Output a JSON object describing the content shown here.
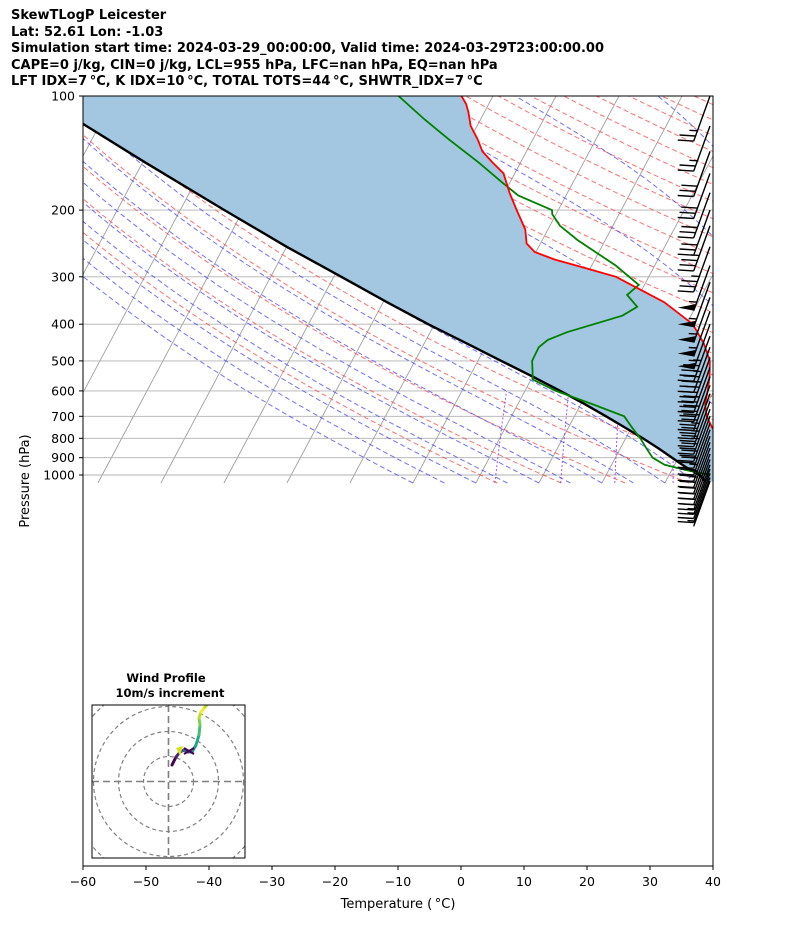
{
  "header": {
    "line1": "SkewTLogP Leicester",
    "line2": "Lat: 52.61   Lon: -1.03",
    "line3": "Simulation start time: 2024-03-29_00:00:00, Valid time: 2024-03-29T23:00:00.00",
    "line4": "CAPE=0 j/kg, CIN=0 j/kg, LCL=955 hPa, LFC=nan hPa, EQ=nan hPa",
    "line5": "LFT IDX=7 °C, K IDX=10 °C, TOTAL TOTS=44 °C, SHWTR_IDX=7 °C"
  },
  "colors": {
    "temperature": "#ff0000",
    "dewpoint": "#008000",
    "parcel": "#000000",
    "cape_fill": "#a3c7e0",
    "dry_adiabat": "#ff4040",
    "moist_adiabat": "#4040ff",
    "mixing_ratio": "#8a2be2",
    "isotherm": "#a0a0a0"
  },
  "chart_data": [
    {
      "type": "line",
      "subtype": "skew-T log-P",
      "xlabel": "Temperature ( °C)",
      "ylabel": "Pressure (hPa)",
      "xlim": [
        -60,
        40
      ],
      "ylim": [
        1050,
        100
      ],
      "y_scale": "log",
      "x_ticks": [
        "−60",
        "−50",
        "−40",
        "−30",
        "−20",
        "−10",
        "0",
        "10",
        "20",
        "30",
        "40"
      ],
      "x_tick_values": [
        -60,
        -50,
        -40,
        -30,
        -20,
        -10,
        0,
        10,
        20,
        30,
        40
      ],
      "y_ticks": [
        "100",
        "200",
        "300",
        "400",
        "500",
        "600",
        "700",
        "800",
        "900",
        "1000"
      ],
      "y_tick_values": [
        100,
        200,
        300,
        400,
        500,
        600,
        700,
        800,
        900,
        1000
      ],
      "grid": true,
      "series": [
        {
          "key": "temperature",
          "points": [
            [
              1040,
              7.5
            ],
            [
              1020,
              8.8
            ],
            [
              1000,
              9.6
            ],
            [
              970,
              9.5
            ],
            [
              940,
              9.0
            ],
            [
              900,
              8.3
            ],
            [
              850,
              7.1
            ],
            [
              800,
              5.0
            ],
            [
              750,
              2.8
            ],
            [
              700,
              1.0
            ],
            [
              650,
              -0.3
            ],
            [
              600,
              -1.0
            ],
            [
              550,
              -1.9
            ],
            [
              500,
              -3.2
            ],
            [
              450,
              -5.6
            ],
            [
              400,
              -9.0
            ],
            [
              350,
              -15.4
            ],
            [
              300,
              -25.2
            ],
            [
              285,
              -30.6
            ],
            [
              270,
              -36.4
            ],
            [
              258,
              -40.2
            ],
            [
              245,
              -42.2
            ],
            [
              225,
              -43.6
            ],
            [
              200,
              -46.6
            ],
            [
              180,
              -49.2
            ],
            [
              160,
              -51.8
            ],
            [
              150,
              -54.4
            ],
            [
              140,
              -57.0
            ],
            [
              130,
              -58.8
            ],
            [
              120,
              -61.0
            ],
            [
              110,
              -62.6
            ],
            [
              105,
              -63.6
            ],
            [
              100,
              -65.0
            ]
          ]
        },
        {
          "key": "dewpoint",
          "points": [
            [
              1000,
              6.5
            ],
            [
              970,
              2.2
            ],
            [
              940,
              -1.6
            ],
            [
              900,
              -4.1
            ],
            [
              850,
              -5.9
            ],
            [
              800,
              -7.7
            ],
            [
              750,
              -9.9
            ],
            [
              700,
              -12.1
            ],
            [
              650,
              -18.2
            ],
            [
              600,
              -25.1
            ],
            [
              560,
              -29.7
            ],
            [
              500,
              -31.4
            ],
            [
              460,
              -31.5
            ],
            [
              440,
              -30.7
            ],
            [
              420,
              -28.3
            ],
            [
              380,
              -20.9
            ],
            [
              360,
              -19.3
            ],
            [
              335,
              -21.9
            ],
            [
              315,
              -20.9
            ],
            [
              280,
              -26.2
            ],
            [
              240,
              -34.4
            ],
            [
              220,
              -38.4
            ],
            [
              205,
              -40.6
            ],
            [
              200,
              -41.0
            ],
            [
              183,
              -47.6
            ],
            [
              170,
              -51.0
            ],
            [
              150,
              -56.6
            ],
            [
              130,
              -63.4
            ],
            [
              115,
              -69.0
            ],
            [
              100,
              -75.0
            ]
          ]
        },
        {
          "key": "parcel",
          "points": [
            [
              1040,
              6.3
            ],
            [
              1000,
              4.8
            ],
            [
              950,
              1.8
            ],
            [
              900,
              -1.0
            ],
            [
              850,
              -4.0
            ],
            [
              800,
              -7.3
            ],
            [
              750,
              -11.0
            ],
            [
              700,
              -15.0
            ],
            [
              650,
              -19.4
            ],
            [
              600,
              -24.4
            ],
            [
              550,
              -30.0
            ],
            [
              500,
              -36.3
            ],
            [
              450,
              -43.2
            ],
            [
              400,
              -51.0
            ],
            [
              350,
              -59.4
            ],
            [
              300,
              -68.8
            ],
            [
              250,
              -80.0
            ],
            [
              200,
              -93.0
            ],
            [
              150,
              -109.5
            ],
            [
              120,
              -122.0
            ],
            [
              100,
              -132.0
            ]
          ]
        }
      ],
      "wind_barbs": {
        "pressures": [
          1038,
          1015,
          990,
          965,
          940,
          910,
          880,
          850,
          820,
          790,
          760,
          730,
          700,
          670,
          640,
          610,
          580,
          550,
          520,
          490,
          460,
          430,
          400,
          370,
          340,
          310,
          280,
          250,
          220,
          200,
          180,
          160,
          140,
          120,
          100
        ],
        "speeds_kt": [
          5,
          10,
          15,
          15,
          20,
          20,
          20,
          20,
          25,
          25,
          25,
          30,
          30,
          35,
          35,
          35,
          40,
          40,
          40,
          45,
          45,
          45,
          55,
          55,
          55,
          55,
          55,
          35,
          35,
          30,
          30,
          30,
          30,
          25,
          25
        ]
      }
    },
    {
      "type": "line",
      "subtype": "hodograph",
      "title": "Wind Profile",
      "subtitle": "10m/s increment"
    }
  ]
}
